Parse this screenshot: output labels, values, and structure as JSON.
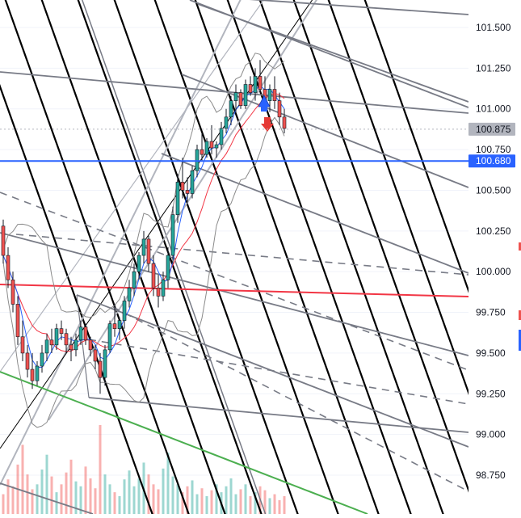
{
  "chart_data": {
    "type": "candlestick",
    "y_axis": {
      "position": "right",
      "ticks": [
        "101.500",
        "101.250",
        "101.000",
        "100.750",
        "100.500",
        "100.250",
        "100.000",
        "99.750",
        "99.500",
        "99.250",
        "99.000",
        "98.750"
      ],
      "tick_values": [
        101.5,
        101.25,
        101.0,
        100.75,
        100.5,
        100.25,
        100.0,
        99.75,
        99.5,
        99.25,
        99.0,
        98.75
      ],
      "ylim": [
        98.55,
        101.67
      ]
    },
    "price_labels": [
      {
        "text": "100.875",
        "value": 100.875,
        "color": "#b2b5be",
        "text_color": "#131722"
      },
      {
        "text": "100.680",
        "value": 100.68,
        "color": "#2962ff",
        "text_color": "#ffffff"
      }
    ],
    "reference_lines": [
      {
        "value": 100.875,
        "style": "dotted",
        "color": "#b2b5be"
      },
      {
        "value": 100.68,
        "style": "solid",
        "color": "#2962ff"
      }
    ],
    "colors": {
      "up": "#26a69a",
      "down": "#ef5350",
      "wick": "#131722",
      "bollinger": "#8a8a8a",
      "ma_red": "#f23645",
      "ma_blue": "#2962ff",
      "fan_black": "#000000",
      "fan_gray": "#787b86",
      "channel_light": "#b2b5be",
      "trend_green": "#4caf50",
      "signal_up": "#2962ff",
      "signal_down": "#e53935"
    },
    "candles": [
      [
        100.28,
        100.32,
        100.05,
        100.1
      ],
      [
        100.1,
        100.15,
        99.9,
        99.95
      ],
      [
        99.95,
        100.0,
        99.75,
        99.8
      ],
      [
        99.8,
        99.85,
        99.55,
        99.6
      ],
      [
        99.6,
        99.7,
        99.45,
        99.5
      ],
      [
        99.5,
        99.55,
        99.35,
        99.4
      ],
      [
        99.4,
        99.5,
        99.28,
        99.33
      ],
      [
        99.33,
        99.45,
        99.3,
        99.42
      ],
      [
        99.42,
        99.55,
        99.38,
        99.5
      ],
      [
        99.5,
        99.62,
        99.45,
        99.58
      ],
      [
        99.58,
        99.65,
        99.5,
        99.55
      ],
      [
        99.55,
        99.68,
        99.52,
        99.65
      ],
      [
        99.65,
        99.7,
        99.58,
        99.62
      ],
      [
        99.62,
        99.65,
        99.5,
        99.55
      ],
      [
        99.55,
        99.6,
        99.45,
        99.52
      ],
      [
        99.52,
        99.62,
        99.48,
        99.58
      ],
      [
        99.58,
        99.7,
        99.55,
        99.66
      ],
      [
        99.66,
        99.68,
        99.55,
        99.58
      ],
      [
        99.58,
        99.6,
        99.48,
        99.52
      ],
      [
        99.52,
        99.55,
        99.4,
        99.45
      ],
      [
        99.45,
        99.5,
        99.25,
        99.35
      ],
      [
        99.35,
        99.55,
        99.3,
        99.52
      ],
      [
        99.52,
        99.7,
        99.5,
        99.68
      ],
      [
        99.68,
        99.8,
        99.6,
        99.65
      ],
      [
        99.65,
        99.72,
        99.58,
        99.7
      ],
      [
        99.7,
        99.85,
        99.65,
        99.82
      ],
      [
        99.82,
        99.95,
        99.78,
        99.9
      ],
      [
        99.9,
        100.05,
        99.85,
        100.0
      ],
      [
        100.0,
        100.12,
        99.95,
        100.1
      ],
      [
        100.1,
        100.25,
        100.05,
        100.2
      ],
      [
        100.2,
        100.22,
        100.0,
        100.05
      ],
      [
        100.05,
        100.1,
        99.85,
        99.9
      ],
      [
        99.9,
        99.98,
        99.78,
        99.85
      ],
      [
        99.85,
        100.0,
        99.82,
        99.95
      ],
      [
        99.95,
        100.15,
        99.9,
        100.1
      ],
      [
        100.1,
        100.4,
        100.05,
        100.35
      ],
      [
        100.35,
        100.6,
        100.3,
        100.55
      ],
      [
        100.55,
        100.7,
        100.45,
        100.5
      ],
      [
        100.5,
        100.58,
        100.42,
        100.48
      ],
      [
        100.48,
        100.65,
        100.45,
        100.62
      ],
      [
        100.62,
        100.78,
        100.58,
        100.75
      ],
      [
        100.75,
        100.85,
        100.68,
        100.72
      ],
      [
        100.72,
        100.82,
        100.7,
        100.8
      ],
      [
        100.8,
        100.9,
        100.72,
        100.76
      ],
      [
        100.76,
        100.8,
        100.7,
        100.78
      ],
      [
        100.78,
        100.92,
        100.75,
        100.88
      ],
      [
        100.88,
        101.0,
        100.85,
        100.95
      ],
      [
        100.95,
        101.08,
        100.9,
        101.05
      ],
      [
        101.05,
        101.15,
        100.98,
        101.1
      ],
      [
        101.1,
        101.12,
        101.0,
        101.02
      ],
      [
        101.02,
        101.18,
        101.0,
        101.15
      ],
      [
        101.15,
        101.2,
        101.08,
        101.1
      ],
      [
        101.1,
        101.25,
        101.05,
        101.2
      ],
      [
        101.2,
        101.3,
        101.1,
        101.12
      ],
      [
        101.12,
        101.2,
        101.0,
        101.05
      ],
      [
        101.05,
        101.15,
        100.98,
        101.12
      ],
      [
        101.12,
        101.2,
        101.0,
        101.05
      ],
      [
        101.05,
        101.1,
        100.9,
        100.95
      ],
      [
        100.95,
        101.0,
        100.85,
        100.88
      ]
    ],
    "volumes": [
      20,
      35,
      28,
      50,
      70,
      40,
      25,
      30,
      45,
      60,
      38,
      22,
      30,
      42,
      55,
      33,
      28,
      48,
      36,
      26,
      90,
      40,
      30,
      22,
      18,
      35,
      44,
      28,
      36,
      52,
      40,
      30,
      25,
      46,
      62,
      38,
      30,
      22,
      28,
      34,
      20,
      26,
      18,
      24,
      30,
      22,
      28,
      36,
      20,
      25,
      30,
      18,
      22,
      28,
      24,
      16,
      20,
      14,
      18
    ]
  }
}
